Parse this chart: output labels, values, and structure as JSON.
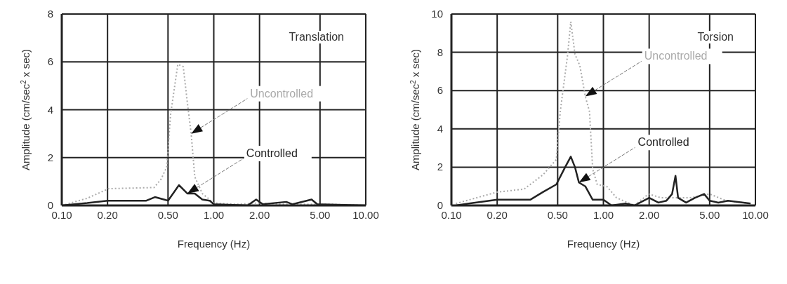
{
  "chart_data": [
    {
      "type": "line",
      "title": "Translation",
      "xlabel": "Frequency (Hz)",
      "ylabel": "Amplitude (cm/sec$^{2}$ x sec)",
      "log": "x",
      "xlim": [
        0.1,
        10
      ],
      "xticks": [
        {
          "value": 0.1,
          "label": "0.10"
        },
        {
          "value": 0.2,
          "label": "0.20"
        },
        {
          "value": 0.5,
          "label": "0.50"
        },
        {
          "value": 1,
          "label": "1.00"
        },
        {
          "value": 2,
          "label": "2.00"
        },
        {
          "value": 5,
          "label": "5.00"
        },
        {
          "value": 10,
          "label": "10.00"
        }
      ],
      "ylim": [
        0,
        8
      ],
      "yticks": [
        0,
        2,
        4,
        6,
        8
      ],
      "grid": true,
      "marker": "none",
      "series": [
        {
          "name": "Uncontrolled",
          "color": "#aaaaaa",
          "line_style": "dotted",
          "x": [
            0.1,
            0.147,
            0.203,
            0.405,
            0.45,
            0.49,
            0.52,
            0.58,
            0.63,
            0.67,
            0.71,
            0.75,
            0.84,
            1.0,
            1.4,
            1.94,
            2.9,
            6.0,
            10
          ],
          "values": [
            0,
            0.3,
            0.7,
            0.75,
            1.1,
            1.6,
            3.8,
            5.9,
            5.8,
            4.3,
            3.0,
            1.2,
            0.5,
            0.1,
            0.05,
            0.1,
            0.05,
            0.05,
            0
          ]
        },
        {
          "name": "Controlled",
          "color": "#222222",
          "line_style": "solid",
          "x": [
            0.1,
            0.147,
            0.2,
            0.36,
            0.41,
            0.47,
            0.5,
            0.59,
            0.67,
            0.75,
            0.84,
            0.94,
            1.0,
            1.67,
            1.9,
            2.1,
            3.0,
            3.3,
            4.4,
            4.8,
            10
          ],
          "values": [
            0,
            0.1,
            0.2,
            0.2,
            0.35,
            0.25,
            0.2,
            0.85,
            0.5,
            0.5,
            0.25,
            0.2,
            0.05,
            0,
            0.25,
            0.05,
            0.15,
            0.05,
            0.25,
            0.05,
            0
          ]
        }
      ],
      "legend": false
    },
    {
      "type": "line",
      "title": "Torsion",
      "xlabel": "Frequency (Hz)",
      "ylabel": "Amplitude (cm/sec$^{2}$ x sec)",
      "log": "x",
      "xlim": [
        0.1,
        10
      ],
      "xticks": [
        {
          "value": 0.1,
          "label": "0.10"
        },
        {
          "value": 0.2,
          "label": "0.20"
        },
        {
          "value": 0.5,
          "label": "0.50"
        },
        {
          "value": 1,
          "label": "1.00"
        },
        {
          "value": 2,
          "label": "2.00"
        },
        {
          "value": 5,
          "label": "5.00"
        },
        {
          "value": 10,
          "label": "10.00"
        }
      ],
      "ylim": [
        0,
        10
      ],
      "yticks": [
        0,
        2,
        4,
        6,
        8,
        10
      ],
      "grid": true,
      "marker": "none",
      "series": [
        {
          "name": "Uncontrolled",
          "color": "#aaaaaa",
          "line_style": "dotted",
          "x": [
            0.107,
            0.2,
            0.3,
            0.4,
            0.49,
            0.52,
            0.58,
            0.61,
            0.65,
            0.7,
            0.76,
            0.81,
            0.85,
            0.91,
            1.05,
            1.22,
            1.6,
            1.98,
            2.4,
            3.0,
            3.7,
            5.0,
            6.4,
            9.3
          ],
          "values": [
            0.1,
            0.7,
            0.85,
            1.6,
            2.4,
            4.9,
            7.8,
            9.6,
            7.9,
            7.3,
            5.7,
            4.9,
            1.9,
            1.1,
            1.0,
            0.4,
            0,
            0.6,
            0.4,
            0.4,
            0.4,
            0.6,
            0.25,
            0.1
          ]
        },
        {
          "name": "Controlled",
          "color": "#222222",
          "line_style": "solid",
          "x": [
            0.107,
            0.13,
            0.2,
            0.29,
            0.33,
            0.4,
            0.49,
            0.56,
            0.61,
            0.65,
            0.69,
            0.76,
            0.85,
            1.0,
            1.13,
            1.4,
            1.6,
            2.0,
            2.3,
            2.6,
            2.83,
            2.98,
            3.1,
            3.5,
            4.0,
            4.6,
            5.0,
            5.7,
            6.6,
            9.3
          ],
          "values": [
            0,
            0.1,
            0.3,
            0.3,
            0.3,
            0.7,
            1.1,
            2.0,
            2.55,
            2.0,
            1.2,
            1.0,
            0.3,
            0.3,
            0,
            0.1,
            0,
            0.4,
            0.15,
            0.25,
            0.6,
            1.55,
            0.4,
            0.15,
            0.4,
            0.6,
            0.25,
            0.15,
            0.25,
            0.1
          ]
        }
      ],
      "legend": false
    }
  ]
}
